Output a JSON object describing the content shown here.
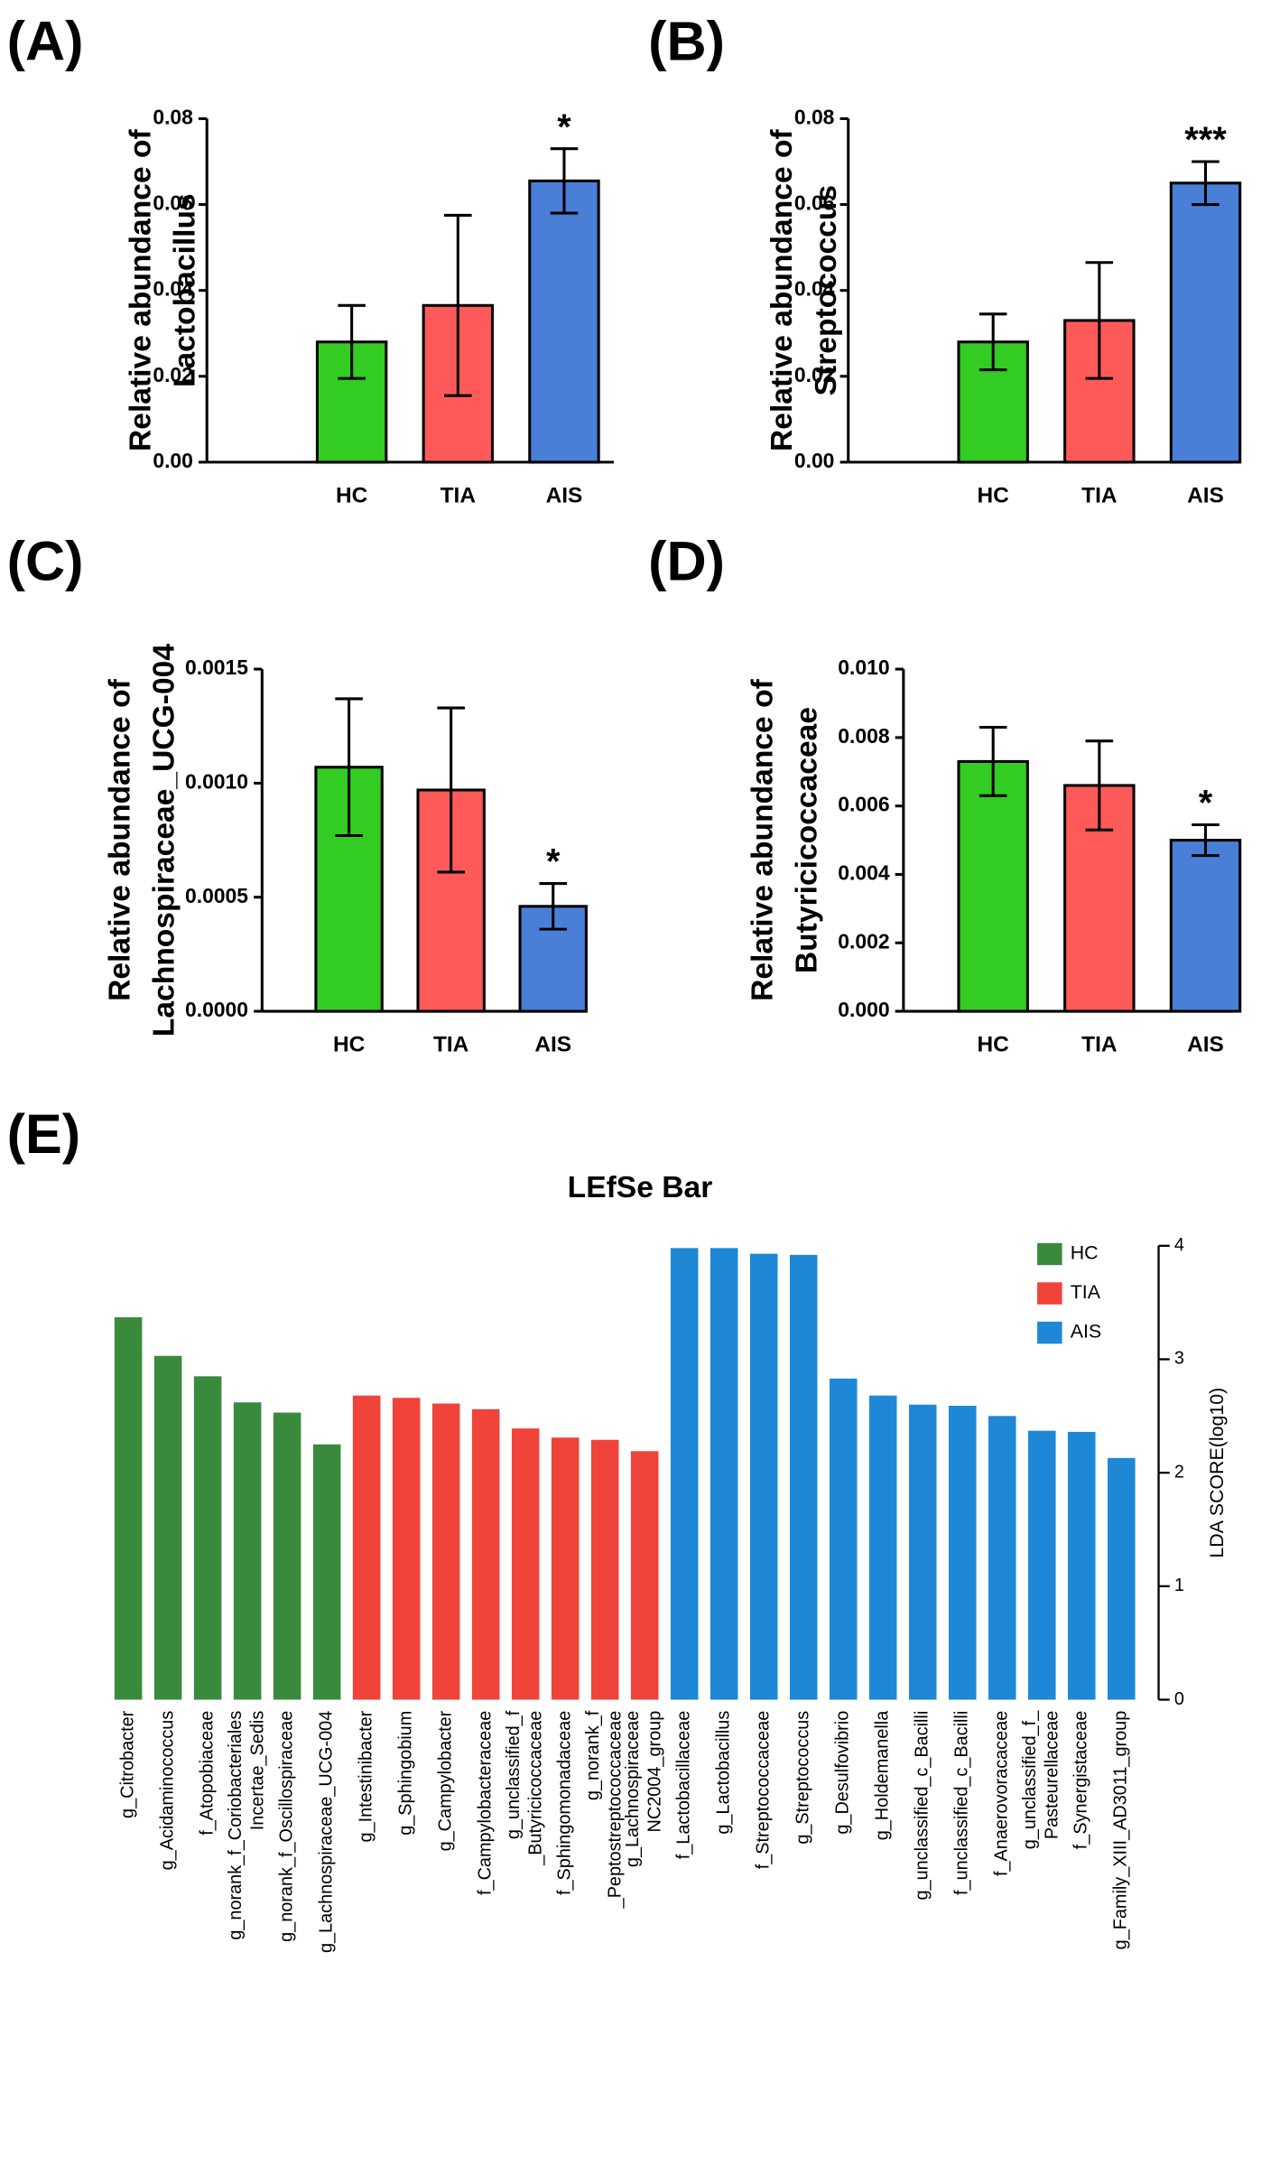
{
  "chart_data": [
    {
      "type": "bar",
      "panel": "(A)",
      "ylabel": "Relative abundance of\nLactobacillus",
      "categories": [
        "HC",
        "TIA",
        "AIS"
      ],
      "values": [
        0.028,
        0.0365,
        0.0655
      ],
      "errors": [
        0.0085,
        0.021,
        0.0075
      ],
      "annotations": [
        null,
        null,
        "*"
      ],
      "colors": [
        "#33cc22",
        "#ff5a5a",
        "#4a7fd8"
      ],
      "ylim": [
        0,
        0.08
      ],
      "yticks": [
        {
          "value": 0,
          "label": "0.00"
        },
        0.02,
        0.04,
        0.06,
        0.08
      ]
    },
    {
      "type": "bar",
      "panel": "(B)",
      "ylabel": "Relative abundance of\nStreptococcus",
      "categories": [
        "HC",
        "TIA",
        "AIS"
      ],
      "values": [
        0.028,
        0.033,
        0.065
      ],
      "errors": [
        0.0065,
        0.0135,
        0.005
      ],
      "annotations": [
        null,
        null,
        "***"
      ],
      "colors": [
        "#33cc22",
        "#ff5a5a",
        "#4a7fd8"
      ],
      "ylim": [
        0,
        0.08
      ],
      "yticks": [
        {
          "value": 0,
          "label": "0.00"
        },
        0.02,
        0.04,
        0.06,
        0.08
      ]
    },
    {
      "type": "bar",
      "panel": "(C)",
      "ylabel": "Relative abundance of\nLachnospiraceae_UCG-004",
      "categories": [
        "HC",
        "TIA",
        "AIS"
      ],
      "values": [
        0.00107,
        0.00097,
        0.00046
      ],
      "errors": [
        0.0003,
        0.00036,
        0.0001
      ],
      "annotations": [
        null,
        null,
        "*"
      ],
      "colors": [
        "#33cc22",
        "#ff5a5a",
        "#4a7fd8"
      ],
      "ylim": [
        0,
        0.0015
      ],
      "yticks": [
        {
          "value": 0,
          "label": "0.0000"
        },
        0.0005,
        {
          "value": 0.001,
          "label": "0.0010"
        },
        0.0015
      ]
    },
    {
      "type": "bar",
      "panel": "(D)",
      "ylabel": "Relative abundance of\nButyricicoccaceae",
      "categories": [
        "HC",
        "TIA",
        "AIS"
      ],
      "values": [
        0.0073,
        0.0066,
        0.005
      ],
      "errors": [
        0.001,
        0.0013,
        0.00045
      ],
      "annotations": [
        null,
        null,
        "*"
      ],
      "colors": [
        "#33cc22",
        "#ff5a5a",
        "#4a7fd8"
      ],
      "ylim": [
        0,
        0.01
      ],
      "yticks": [
        {
          "value": 0,
          "label": "0.000"
        },
        0.002,
        0.004,
        0.006,
        0.008,
        {
          "value": 0.01,
          "label": "0.010"
        }
      ]
    },
    {
      "type": "lefse",
      "panel": "(E)",
      "title": "LEfSe Bar",
      "ylabel": "LDA SCORE(log10)",
      "categories": [
        "g_Citrobacter",
        "g_Acidaminococcus",
        "f_Atopobiaceae",
        "g_norank_f_Coriobacteriales\nIncertae_Sedis",
        "g_norank_f_Oscillospiraceae",
        "g_Lachnospiraceae_UCG-004",
        "g_Intestinibacter",
        "g_Sphingobium",
        "g_Campylobacter",
        "f_Campylobacteraceae",
        "g_unclassified_f\n_Butyricicoccaceae",
        "f_Sphingomonadaceae",
        "g_norank_f\n_Peptostreptococcaceae",
        "g_Lachnospiraceae\nNC2004_group",
        "f_Lactobacillaceae",
        "g_Lactobacillus",
        "f_Streptococcaceae",
        "g_Streptococcus",
        "g_Desulfovibrio",
        "g_Holdemanella",
        "g_unclassified_c_Bacilli",
        "f_unclassified_c_Bacilli",
        "f_Anaerovoracaceae",
        "g_unclassified_f_\nPasteurellaceae",
        "f_Synergistaceae",
        "g_Family_XIII_AD3011_group"
      ],
      "series": [
        {
          "name": "HC",
          "color": "#3a8a3e",
          "values": [
            3.37,
            3.03,
            2.85,
            2.62,
            2.53,
            2.25,
            null,
            null,
            null,
            null,
            null,
            null,
            null,
            null,
            null,
            null,
            null,
            null,
            null,
            null,
            null,
            null,
            null,
            null,
            null,
            null
          ]
        },
        {
          "name": "TIA",
          "color": "#f0433a",
          "values": [
            null,
            null,
            null,
            null,
            null,
            null,
            2.68,
            2.66,
            2.61,
            2.56,
            2.39,
            2.31,
            2.29,
            2.19,
            null,
            null,
            null,
            null,
            null,
            null,
            null,
            null,
            null,
            null,
            null,
            null
          ]
        },
        {
          "name": "AIS",
          "color": "#1e88d6",
          "values": [
            null,
            null,
            null,
            null,
            null,
            null,
            null,
            null,
            null,
            null,
            null,
            null,
            null,
            null,
            3.98,
            3.98,
            3.93,
            3.92,
            2.83,
            2.68,
            2.6,
            2.59,
            2.5,
            2.37,
            2.36,
            2.13
          ]
        }
      ],
      "ylim": [
        0,
        4
      ],
      "yticks": [
        0,
        1,
        2,
        3,
        4
      ],
      "legend": "upper right"
    }
  ]
}
